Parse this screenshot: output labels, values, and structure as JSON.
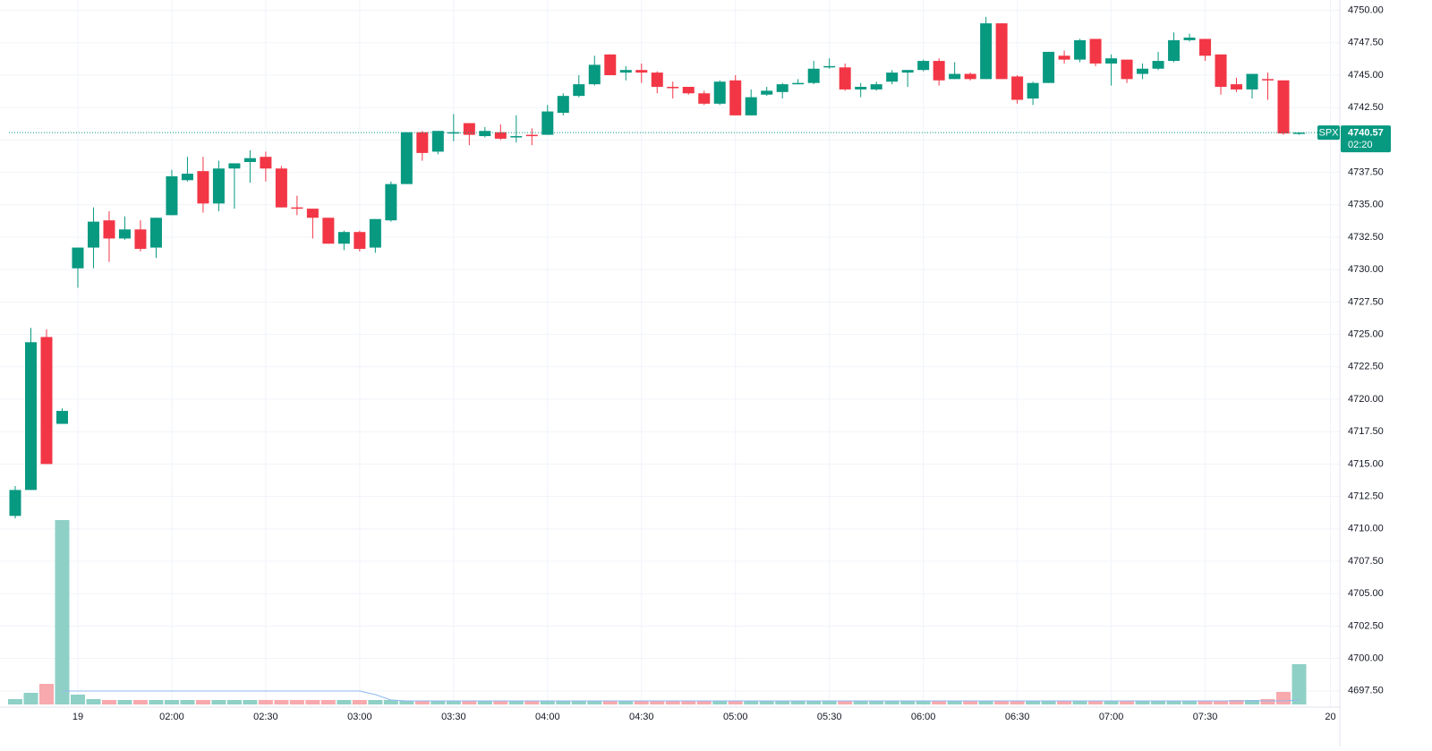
{
  "chart_data": {
    "type": "candlestick",
    "symbol": "SPX",
    "last_price": 4740.57,
    "countdown": "02:20",
    "up_color": "#089981",
    "down_color": "#f23645",
    "volume_up_color": "#8fd0c6",
    "volume_down_color": "#f7a9ae",
    "ma_color": "#90b8f0",
    "grid": true,
    "x": [
      "01:10",
      "01:15",
      "01:20",
      "01:25",
      "01:30",
      "01:35",
      "01:40",
      "01:45",
      "01:50",
      "01:55",
      "02:00",
      "02:05",
      "02:10",
      "02:15",
      "02:20",
      "02:25",
      "02:30",
      "02:35",
      "02:40",
      "02:45",
      "02:50",
      "02:55",
      "03:00",
      "03:05",
      "03:10",
      "03:15",
      "03:20",
      "03:25",
      "03:30",
      "03:35",
      "03:40",
      "03:45",
      "03:50",
      "03:55",
      "04:00",
      "04:05",
      "04:10",
      "04:15",
      "04:20",
      "04:25",
      "04:30",
      "04:35",
      "04:40",
      "04:45",
      "04:50",
      "04:55",
      "05:00",
      "05:05",
      "05:10",
      "05:15",
      "05:20",
      "05:25",
      "05:30",
      "05:35",
      "05:40",
      "05:45",
      "05:50",
      "05:55",
      "06:00",
      "06:05",
      "06:10",
      "06:15",
      "06:20",
      "06:25",
      "06:30",
      "06:35",
      "06:40",
      "06:45",
      "06:50",
      "06:55",
      "07:00",
      "07:05",
      "07:10",
      "07:15",
      "07:20",
      "07:25",
      "07:30",
      "07:35",
      "07:40",
      "07:45",
      "07:50",
      "07:55",
      "08:00"
    ],
    "open": [
      4711.0,
      4713.0,
      4724.8,
      4718.1,
      4730.1,
      4731.7,
      4733.8,
      4732.4,
      4733.1,
      4731.7,
      4734.2,
      4736.9,
      4737.6,
      4735.1,
      4737.8,
      4738.3,
      4738.7,
      4737.8,
      4734.8,
      4734.7,
      4734.0,
      4732.0,
      4732.9,
      4731.7,
      4733.8,
      4736.6,
      4740.6,
      4739.1,
      4740.5,
      4741.3,
      4740.3,
      4740.6,
      4740.2,
      4740.4,
      4740.4,
      4742.1,
      4743.4,
      4744.3,
      4746.6,
      4745.2,
      4745.4,
      4745.2,
      4744.1,
      4744.1,
      4743.6,
      4742.8,
      4744.6,
      4741.9,
      4743.5,
      4743.7,
      4744.3,
      4744.4,
      4745.6,
      4745.6,
      4743.9,
      4743.9,
      4744.5,
      4745.2,
      4745.4,
      4746.1,
      4744.7,
      4745.1,
      4744.7,
      4749.0,
      4744.9,
      4743.2,
      4744.4,
      4746.5,
      4746.2,
      4747.8,
      4745.9,
      4746.2,
      4745.1,
      4745.5,
      4746.1,
      4747.7,
      4747.8,
      4746.6,
      4744.3,
      4743.9,
      4744.7,
      4744.6,
      4740.5
    ],
    "high": [
      4713.3,
      4725.5,
      4725.4,
      4719.3,
      4731.7,
      4734.8,
      4734.5,
      4734.1,
      4733.8,
      4734.0,
      4737.7,
      4738.7,
      4738.7,
      4738.4,
      4738.2,
      4739.2,
      4739.1,
      4738.0,
      4735.7,
      4734.7,
      4734.0,
      4733.0,
      4733.0,
      4733.9,
      4736.8,
      4740.6,
      4740.7,
      4740.7,
      4742.0,
      4741.3,
      4741.0,
      4741.2,
      4741.9,
      4740.9,
      4742.7,
      4743.6,
      4745.0,
      4746.5,
      4746.6,
      4745.7,
      4745.9,
      4745.3,
      4744.5,
      4744.1,
      4743.8,
      4744.6,
      4745.0,
      4743.9,
      4744.1,
      4744.4,
      4744.7,
      4746.1,
      4746.3,
      4745.9,
      4744.4,
      4744.5,
      4745.4,
      4745.4,
      4746.2,
      4746.3,
      4746.0,
      4745.2,
      4749.5,
      4749.0,
      4745.0,
      4744.5,
      4746.8,
      4746.9,
      4747.8,
      4747.8,
      4746.6,
      4746.2,
      4745.9,
      4746.8,
      4748.3,
      4748.2,
      4747.8,
      4746.6,
      4744.8,
      4745.1,
      4745.2,
      4744.6,
      4740.6
    ],
    "low": [
      4710.8,
      4713.0,
      4715.0,
      4718.1,
      4728.6,
      4730.1,
      4730.6,
      4732.3,
      4731.4,
      4730.9,
      4734.2,
      4736.8,
      4734.4,
      4734.5,
      4734.7,
      4736.7,
      4736.8,
      4734.8,
      4734.2,
      4732.4,
      4732.0,
      4731.5,
      4731.4,
      4731.3,
      4733.7,
      4736.6,
      4738.4,
      4738.9,
      4739.9,
      4739.6,
      4740.2,
      4740.0,
      4739.8,
      4739.6,
      4740.4,
      4741.9,
      4743.3,
      4744.2,
      4745.0,
      4744.6,
      4744.4,
      4743.6,
      4743.2,
      4743.5,
      4742.7,
      4742.7,
      4741.9,
      4741.9,
      4743.4,
      4743.2,
      4744.3,
      4744.3,
      4745.5,
      4743.8,
      4743.3,
      4743.8,
      4744.3,
      4744.1,
      4745.3,
      4744.2,
      4744.7,
      4744.6,
      4744.7,
      4744.7,
      4742.8,
      4742.7,
      4744.4,
      4745.9,
      4746.0,
      4745.7,
      4744.2,
      4744.4,
      4744.7,
      4745.4,
      4746.0,
      4747.6,
      4746.1,
      4743.5,
      4743.7,
      4743.2,
      4743.1,
      4740.4,
      4740.4
    ],
    "close": [
      4713.0,
      4724.4,
      4715.0,
      4719.1,
      4731.7,
      4733.7,
      4732.4,
      4733.1,
      4731.6,
      4734.0,
      4737.2,
      4737.4,
      4735.1,
      4737.8,
      4738.2,
      4738.6,
      4737.8,
      4734.8,
      4734.7,
      4734.0,
      4732.0,
      4732.9,
      4731.6,
      4733.9,
      4736.6,
      4740.6,
      4739.0,
      4740.7,
      4740.6,
      4740.4,
      4740.7,
      4740.1,
      4740.3,
      4740.3,
      4742.2,
      4743.4,
      4744.3,
      4745.8,
      4745.0,
      4745.4,
      4745.2,
      4744.1,
      4744.0,
      4743.6,
      4742.8,
      4744.5,
      4741.9,
      4743.3,
      4743.8,
      4744.3,
      4744.4,
      4745.5,
      4745.7,
      4743.9,
      4744.1,
      4744.3,
      4745.2,
      4745.4,
      4746.1,
      4744.6,
      4745.1,
      4744.7,
      4749.0,
      4744.7,
      4743.1,
      4744.4,
      4746.8,
      4746.2,
      4747.7,
      4745.9,
      4746.3,
      4744.7,
      4745.5,
      4746.1,
      4747.7,
      4747.9,
      4746.5,
      4744.1,
      4743.9,
      4745.1,
      4744.6,
      4740.5,
      4740.57
    ],
    "volume": [
      6,
      13,
      23,
      206,
      11,
      6,
      5,
      5,
      5,
      5,
      5,
      5,
      5,
      5,
      5,
      5,
      5,
      5,
      5,
      5,
      5,
      5,
      5,
      5,
      5,
      4,
      4,
      4,
      4,
      4,
      4,
      4,
      4,
      4,
      4,
      4,
      4,
      4,
      4,
      4,
      4,
      4,
      4,
      4,
      4,
      4,
      4,
      4,
      4,
      4,
      4,
      4,
      4,
      4,
      4,
      4,
      4,
      4,
      4,
      4,
      4,
      4,
      4,
      4,
      4,
      4,
      4,
      4,
      4,
      4,
      4,
      4,
      4,
      4,
      4,
      4,
      4,
      4,
      5,
      5,
      6,
      14,
      45
    ],
    "volume_ma": [
      null,
      null,
      null,
      15,
      15,
      15,
      15,
      15,
      15,
      15,
      15,
      15,
      15,
      15,
      15,
      15,
      15,
      15,
      15,
      15,
      15,
      15,
      15,
      11,
      5,
      4,
      4,
      4,
      4,
      4,
      4,
      4,
      4,
      4,
      4,
      4,
      4,
      4,
      4,
      4,
      4,
      4,
      4,
      4,
      4,
      4,
      4,
      4,
      4,
      4,
      4,
      4,
      4,
      4,
      4,
      4,
      4,
      4,
      4,
      4,
      4,
      4,
      4,
      4,
      4,
      4,
      4,
      4,
      4,
      4,
      4,
      4,
      4,
      4,
      4,
      4,
      4,
      4,
      4,
      4,
      4,
      4,
      5
    ],
    "vlim": [
      0,
      220
    ],
    "xlim": [
      "01:08",
      "08:13"
    ],
    "xticks": [
      {
        "value": "01:30",
        "label": "19"
      },
      "02:00",
      "02:30",
      "03:00",
      "03:30",
      "04:00",
      "04:30",
      "05:00",
      "05:30",
      "06:00",
      "06:30",
      "07:00",
      "07:30",
      {
        "value": "08:10",
        "label": "20"
      }
    ],
    "ylim": [
      4695.9,
      4750.8
    ],
    "yticks": [
      {
        "value": 4697.5,
        "label": "4697.50"
      },
      {
        "value": 4700,
        "label": "4700.00"
      },
      {
        "value": 4702.5,
        "label": "4702.50"
      },
      {
        "value": 4705,
        "label": "4705.00"
      },
      {
        "value": 4707.5,
        "label": "4707.50"
      },
      {
        "value": 4710,
        "label": "4710.00"
      },
      {
        "value": 4712.5,
        "label": "4712.50"
      },
      {
        "value": 4715,
        "label": "4715.00"
      },
      {
        "value": 4717.5,
        "label": "4717.50"
      },
      {
        "value": 4720,
        "label": "4720.00"
      },
      {
        "value": 4722.5,
        "label": "4722.50"
      },
      {
        "value": 4725,
        "label": "4725.00"
      },
      {
        "value": 4727.5,
        "label": "4727.50"
      },
      {
        "value": 4730,
        "label": "4730.00"
      },
      {
        "value": 4732.5,
        "label": "4732.50"
      },
      {
        "value": 4735,
        "label": "4735.00"
      },
      {
        "value": 4737.5,
        "label": "4737.50"
      },
      {
        "value": 4740,
        "label": "4740.00"
      },
      {
        "value": 4742.5,
        "label": "4742.50"
      },
      {
        "value": 4745,
        "label": "4745.00"
      },
      {
        "value": 4747.5,
        "label": "4747.50"
      },
      {
        "value": 4750,
        "label": "4750.00"
      }
    ]
  }
}
